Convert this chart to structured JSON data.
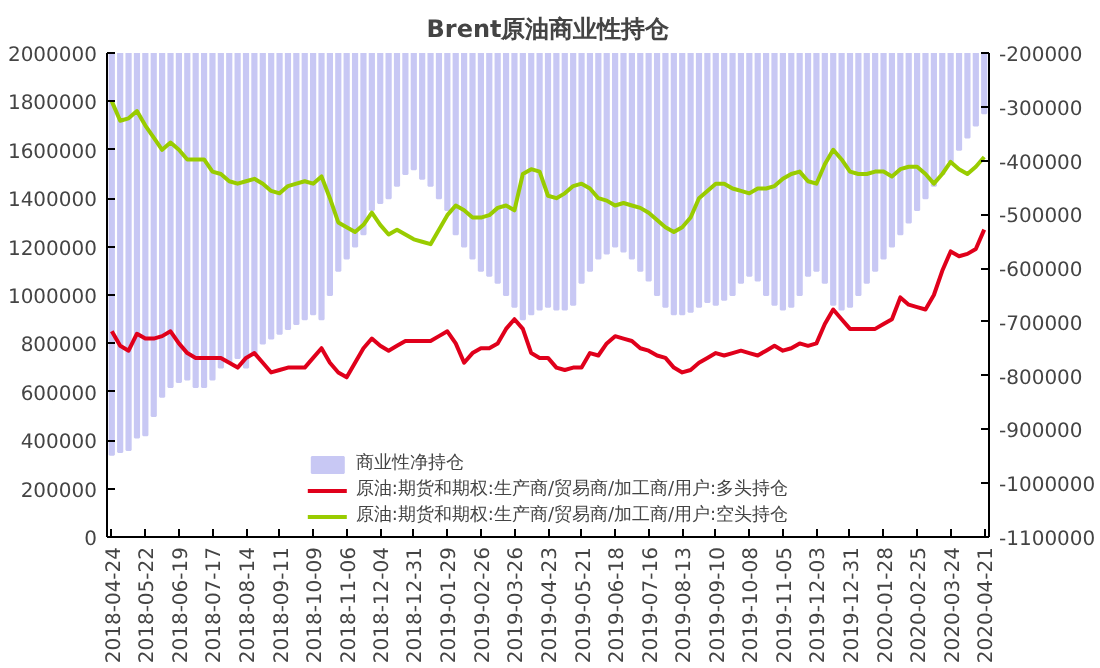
{
  "chart_data": {
    "type": "line",
    "title": "Brent原油商业性持仓",
    "x": [
      "2018-04-24",
      "2018-05-01",
      "2018-05-08",
      "2018-05-15",
      "2018-05-22",
      "2018-05-29",
      "2018-06-05",
      "2018-06-12",
      "2018-06-19",
      "2018-06-26",
      "2018-07-03",
      "2018-07-10",
      "2018-07-17",
      "2018-07-24",
      "2018-07-31",
      "2018-08-07",
      "2018-08-14",
      "2018-08-21",
      "2018-08-28",
      "2018-09-04",
      "2018-09-11",
      "2018-09-18",
      "2018-09-25",
      "2018-10-02",
      "2018-10-09",
      "2018-10-16",
      "2018-10-23",
      "2018-10-30",
      "2018-11-06",
      "2018-11-13",
      "2018-11-20",
      "2018-11-27",
      "2018-12-04",
      "2018-12-11",
      "2018-12-18",
      "2018-12-25",
      "2019-01-01",
      "2019-01-08",
      "2019-01-15",
      "2019-01-22",
      "2019-01-29",
      "2019-02-05",
      "2019-02-12",
      "2019-02-19",
      "2019-02-26",
      "2019-03-05",
      "2019-03-12",
      "2019-03-19",
      "2019-03-26",
      "2019-04-02",
      "2019-04-09",
      "2019-04-16",
      "2019-04-23",
      "2019-04-30",
      "2019-05-07",
      "2019-05-14",
      "2019-05-21",
      "2019-05-28",
      "2019-06-04",
      "2019-06-11",
      "2019-06-18",
      "2019-06-25",
      "2019-07-02",
      "2019-07-09",
      "2019-07-16",
      "2019-07-23",
      "2019-07-30",
      "2019-08-06",
      "2019-08-13",
      "2019-08-20",
      "2019-08-27",
      "2019-09-03",
      "2019-09-10",
      "2019-09-17",
      "2019-09-24",
      "2019-10-01",
      "2019-10-08",
      "2019-10-15",
      "2019-10-22",
      "2019-10-29",
      "2019-11-05",
      "2019-11-12",
      "2019-11-19",
      "2019-11-26",
      "2019-12-03",
      "2019-12-10",
      "2019-12-17",
      "2019-12-24",
      "2019-12-31",
      "2020-01-07",
      "2020-01-14",
      "2020-01-21",
      "2020-01-28",
      "2020-02-04",
      "2020-02-11",
      "2020-02-18",
      "2020-02-25",
      "2020-03-03",
      "2020-03-10",
      "2020-03-17",
      "2020-03-24",
      "2020-03-31",
      "2020-04-07",
      "2020-04-14",
      "2020-04-21"
    ],
    "series": [
      {
        "name": "商业性净持仓",
        "type": "bar",
        "axis": "y2",
        "color": "#c8c8f4",
        "values": [
          -947000,
          -942000,
          -938000,
          -915000,
          -911000,
          -875000,
          -839000,
          -821000,
          -812000,
          -807000,
          -821000,
          -821000,
          -807000,
          -785000,
          -776000,
          -767000,
          -785000,
          -762000,
          -740000,
          -731000,
          -722000,
          -713000,
          -704000,
          -695000,
          -686000,
          -695000,
          -650000,
          -605000,
          -582000,
          -560000,
          -537000,
          -492000,
          -479000,
          -470000,
          -447000,
          -425000,
          -416000,
          -434000,
          -447000,
          -470000,
          -492000,
          -537000,
          -560000,
          -582000,
          -605000,
          -614000,
          -627000,
          -650000,
          -672000,
          -695000,
          -686000,
          -677000,
          -672000,
          -677000,
          -677000,
          -668000,
          -627000,
          -605000,
          -582000,
          -573000,
          -560000,
          -569000,
          -582000,
          -605000,
          -623000,
          -650000,
          -672000,
          -686000,
          -686000,
          -681000,
          -672000,
          -663000,
          -668000,
          -659000,
          -650000,
          -627000,
          -614000,
          -623000,
          -650000,
          -668000,
          -677000,
          -672000,
          -650000,
          -614000,
          -605000,
          -627000,
          -668000,
          -677000,
          -672000,
          -650000,
          -627000,
          -605000,
          -582000,
          -560000,
          -537000,
          -515000,
          -492000,
          -470000,
          -447000,
          -425000,
          -402000,
          -380000,
          -357000,
          -335000,
          -312000
        ]
      },
      {
        "name": "原油:期货和期权:生产商/贸易商/加工商/用户:多头持仓",
        "color": "#e0001b",
        "values": [
          850000,
          790000,
          770000,
          840000,
          820000,
          820000,
          830000,
          850000,
          800000,
          760000,
          740000,
          740000,
          740000,
          740000,
          720000,
          700000,
          740000,
          760000,
          720000,
          680000,
          690000,
          700000,
          700000,
          700000,
          740000,
          780000,
          720000,
          680000,
          660000,
          720000,
          780000,
          820000,
          790000,
          770000,
          790000,
          810000,
          810000,
          810000,
          810000,
          830000,
          850000,
          800000,
          720000,
          760000,
          780000,
          780000,
          800000,
          860000,
          900000,
          860000,
          760000,
          740000,
          740000,
          700000,
          690000,
          700000,
          700000,
          760000,
          750000,
          800000,
          830000,
          820000,
          810000,
          780000,
          770000,
          750000,
          740000,
          700000,
          680000,
          690000,
          720000,
          740000,
          760000,
          750000,
          760000,
          770000,
          760000,
          750000,
          770000,
          790000,
          770000,
          780000,
          800000,
          790000,
          800000,
          880000,
          940000,
          900000,
          860000,
          860000,
          860000,
          860000,
          880000,
          900000,
          990000,
          960000,
          950000,
          940000,
          1000000,
          1100000,
          1180000,
          1160000,
          1170000,
          1190000,
          1270000
        ]
      },
      {
        "name": "原油:期货和期权:生产商/贸易商/加工商/用户:空头持仓",
        "color": "#99cc00",
        "values": [
          1800000,
          1720000,
          1730000,
          1760000,
          1700000,
          1650000,
          1600000,
          1630000,
          1600000,
          1560000,
          1560000,
          1560000,
          1510000,
          1500000,
          1470000,
          1460000,
          1470000,
          1480000,
          1460000,
          1430000,
          1420000,
          1450000,
          1460000,
          1470000,
          1460000,
          1490000,
          1400000,
          1300000,
          1280000,
          1260000,
          1290000,
          1340000,
          1290000,
          1250000,
          1270000,
          1250000,
          1230000,
          1220000,
          1210000,
          1270000,
          1330000,
          1370000,
          1350000,
          1320000,
          1320000,
          1330000,
          1360000,
          1370000,
          1350000,
          1500000,
          1520000,
          1510000,
          1410000,
          1400000,
          1420000,
          1450000,
          1460000,
          1440000,
          1400000,
          1390000,
          1370000,
          1380000,
          1370000,
          1360000,
          1340000,
          1310000,
          1280000,
          1260000,
          1280000,
          1320000,
          1400000,
          1430000,
          1460000,
          1460000,
          1440000,
          1430000,
          1420000,
          1440000,
          1440000,
          1450000,
          1480000,
          1500000,
          1510000,
          1470000,
          1460000,
          1540000,
          1600000,
          1560000,
          1510000,
          1500000,
          1500000,
          1510000,
          1510000,
          1490000,
          1520000,
          1530000,
          1530000,
          1500000,
          1460000,
          1500000,
          1550000,
          1520000,
          1500000,
          1530000,
          1570000
        ]
      }
    ],
    "xlim": [
      "2018-04-20",
      "2020-04-25"
    ],
    "xticks": [
      "2018-04-24",
      "2018-05-22",
      "2018-06-19",
      "2018-07-17",
      "2018-08-14",
      "2018-09-11",
      "2018-10-09",
      "2018-11-06",
      "2018-12-04",
      "2018-12-31",
      "2019-01-29",
      "2019-02-26",
      "2019-03-26",
      "2019-04-23",
      "2019-05-21",
      "2019-06-18",
      "2019-07-16",
      "2019-08-13",
      "2019-09-10",
      "2019-10-08",
      "2019-11-05",
      "2019-12-03",
      "2019-12-31",
      "2020-01-28",
      "2020-02-25",
      "2020-03-24",
      "2020-04-21"
    ],
    "ylim": [
      0,
      2000000
    ],
    "yticks": [
      0,
      200000,
      400000,
      600000,
      800000,
      1000000,
      1200000,
      1400000,
      1600000,
      1800000,
      2000000
    ],
    "y2lim": [
      -1100000,
      -200000
    ],
    "y2ticks": [
      -1100000,
      -1000000,
      -900000,
      -800000,
      -700000,
      -600000,
      -500000,
      -400000,
      -300000,
      -200000
    ],
    "legend": "bottom"
  }
}
